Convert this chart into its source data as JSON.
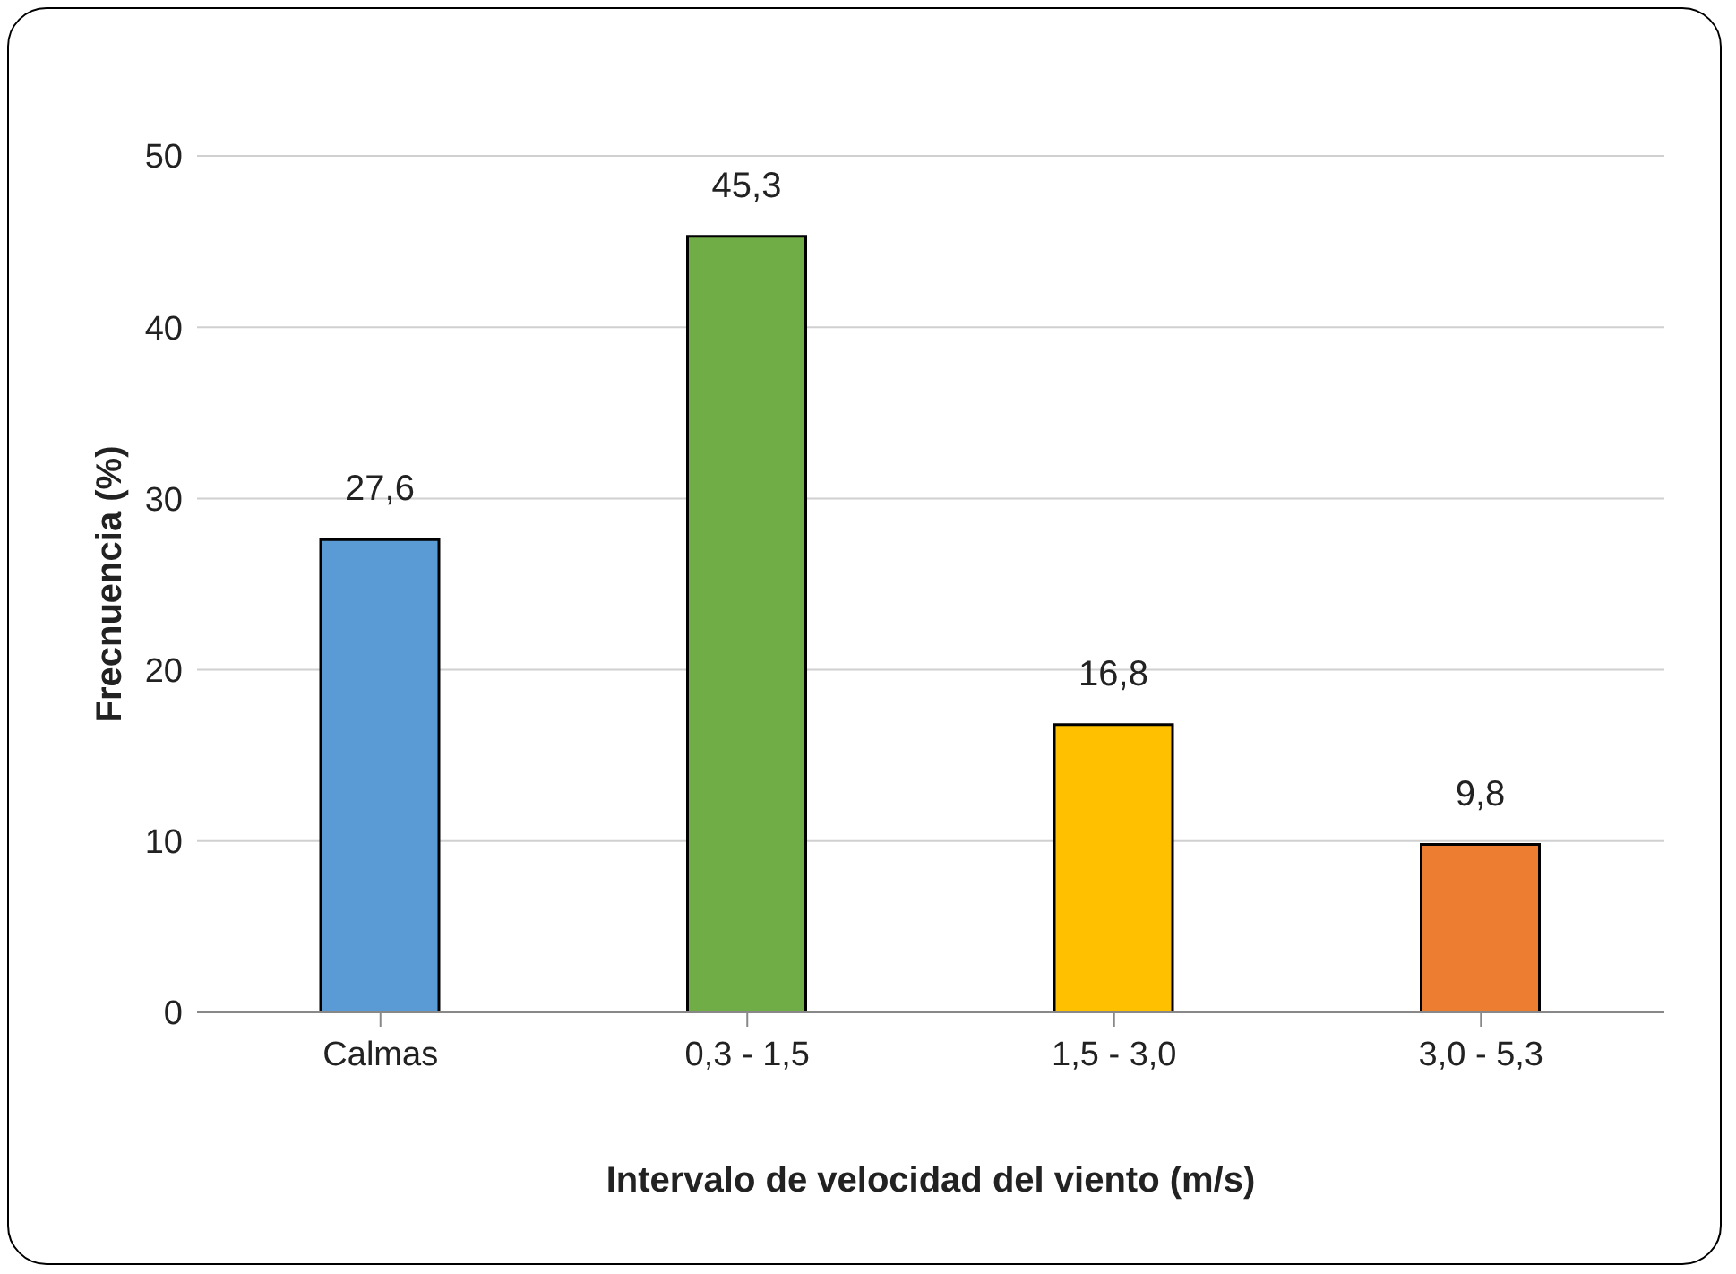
{
  "chart_data": {
    "type": "bar",
    "xlabel": "Intervalo de velocidad del viento (m/s)",
    "ylabel": "Frecnuencia (%)",
    "categories": [
      "Calmas",
      "0,3 - 1,5",
      "1,5 - 3,0",
      "3,0 - 5,3"
    ],
    "values": [
      27.6,
      45.3,
      16.8,
      9.8
    ],
    "colors": [
      "#5b9bd5",
      "#70ad47",
      "#ffc000",
      "#ed7d31"
    ],
    "value_labels": [
      "27,6",
      "45,3",
      "16,8",
      "9,8"
    ],
    "ylim": [
      0,
      50
    ],
    "yticks": [
      0,
      10,
      20,
      30,
      40,
      50
    ],
    "grid": "y"
  }
}
